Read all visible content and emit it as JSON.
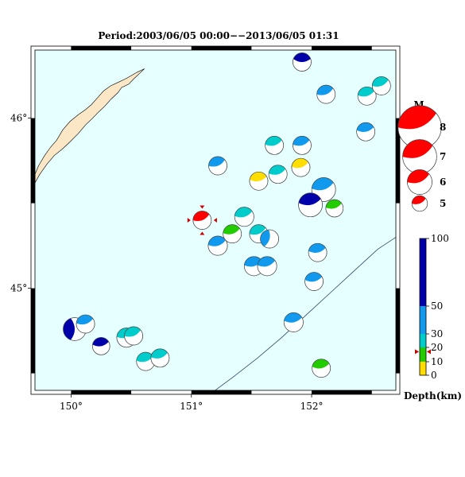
{
  "title": "Period:2003/06/05 00:00−−2013/06/05 01:31",
  "colors": {
    "sea": "#e6ffff",
    "land": "#fbe6c6",
    "frame_dark": "#000000",
    "frame_light": "#ffffff",
    "trench": "#334466"
  },
  "axes": {
    "x_ticks": [
      {
        "label": "150°",
        "lon": 150
      },
      {
        "label": "151°",
        "lon": 151
      },
      {
        "label": "152°",
        "lon": 152
      }
    ],
    "y_ticks": [
      {
        "label": "46°",
        "lat": 46
      },
      {
        "label": "45°",
        "lat": 45
      }
    ],
    "lon_range": [
      149.7,
      152.7
    ],
    "lat_range": [
      44.4,
      46.4
    ]
  },
  "magnitude_legend": {
    "title": "M",
    "items": [
      {
        "label": "8",
        "mag": 8
      },
      {
        "label": "7",
        "mag": 7
      },
      {
        "label": "6",
        "mag": 6
      },
      {
        "label": "5",
        "mag": 5
      }
    ]
  },
  "depth_legend": {
    "title": "Depth(km)",
    "ticks": [
      "100",
      "50",
      "30",
      "20",
      "10",
      "0"
    ],
    "bands": [
      {
        "from": 0,
        "to": 10,
        "color": "#ffdd00"
      },
      {
        "from": 10,
        "to": 20,
        "color": "#22cc00"
      },
      {
        "from": 20,
        "to": 30,
        "color": "#00cccc"
      },
      {
        "from": 30,
        "to": 50,
        "color": "#1199ee"
      },
      {
        "from": 50,
        "to": 100,
        "color": "#0000aa"
      }
    ],
    "marker_depth": 17
  },
  "events": [
    {
      "lon": 151.92,
      "lat": 46.33,
      "mag": 5.3,
      "color": "#0000aa",
      "angle": 20
    },
    {
      "lon": 152.12,
      "lat": 46.14,
      "mag": 5.3,
      "color": "#1199ee",
      "angle": 40
    },
    {
      "lon": 152.46,
      "lat": 46.13,
      "mag": 5.3,
      "color": "#00cccc",
      "angle": 35
    },
    {
      "lon": 152.58,
      "lat": 46.19,
      "mag": 5.3,
      "color": "#00cccc",
      "angle": 40
    },
    {
      "lon": 152.45,
      "lat": 45.92,
      "mag": 5.3,
      "color": "#1199ee",
      "angle": 30
    },
    {
      "lon": 151.69,
      "lat": 45.84,
      "mag": 5.3,
      "color": "#00cccc",
      "angle": 35
    },
    {
      "lon": 151.92,
      "lat": 45.84,
      "mag": 5.3,
      "color": "#1199ee",
      "angle": 35
    },
    {
      "lon": 151.22,
      "lat": 45.72,
      "mag": 5.3,
      "color": "#1199ee",
      "angle": 40
    },
    {
      "lon": 151.91,
      "lat": 45.71,
      "mag": 5.3,
      "color": "#ffdd00",
      "angle": 35
    },
    {
      "lon": 151.72,
      "lat": 45.67,
      "mag": 5.3,
      "color": "#00cccc",
      "angle": 35
    },
    {
      "lon": 151.56,
      "lat": 45.63,
      "mag": 5.3,
      "color": "#ffdd00",
      "angle": 30
    },
    {
      "lon": 152.1,
      "lat": 45.58,
      "mag": 5.9,
      "color": "#1199ee",
      "angle": 35
    },
    {
      "lon": 151.99,
      "lat": 45.49,
      "mag": 5.9,
      "color": "#0000aa",
      "angle": 30
    },
    {
      "lon": 152.19,
      "lat": 45.47,
      "mag": 5.2,
      "color": "#22cc00",
      "angle": 35
    },
    {
      "lon": 151.44,
      "lat": 45.42,
      "mag": 5.4,
      "color": "#00cccc",
      "angle": 35
    },
    {
      "lon": 151.34,
      "lat": 45.32,
      "mag": 5.3,
      "color": "#22cc00",
      "angle": 35
    },
    {
      "lon": 151.56,
      "lat": 45.32,
      "mag": 5.3,
      "color": "#00cccc",
      "angle": 40
    },
    {
      "lon": 151.65,
      "lat": 45.29,
      "mag": 5.3,
      "color": "#1199ee",
      "angle": 95
    },
    {
      "lon": 151.22,
      "lat": 45.25,
      "mag": 5.4,
      "color": "#1199ee",
      "angle": 35
    },
    {
      "lon": 152.05,
      "lat": 45.21,
      "mag": 5.3,
      "color": "#1199ee",
      "angle": 30
    },
    {
      "lon": 151.52,
      "lat": 45.13,
      "mag": 5.4,
      "color": "#1199ee",
      "angle": 35
    },
    {
      "lon": 151.63,
      "lat": 45.13,
      "mag": 5.4,
      "color": "#1199ee",
      "angle": 35
    },
    {
      "lon": 152.02,
      "lat": 45.04,
      "mag": 5.3,
      "color": "#1199ee",
      "angle": 30
    },
    {
      "lon": 151.85,
      "lat": 44.8,
      "mag": 5.4,
      "color": "#1199ee",
      "angle": 30
    },
    {
      "lon": 150.03,
      "lat": 44.76,
      "mag": 5.8,
      "color": "#0000aa",
      "angle": 110
    },
    {
      "lon": 150.12,
      "lat": 44.79,
      "mag": 5.3,
      "color": "#1199ee",
      "angle": 35
    },
    {
      "lon": 150.46,
      "lat": 44.71,
      "mag": 5.4,
      "color": "#00cccc",
      "angle": 35
    },
    {
      "lon": 150.52,
      "lat": 44.72,
      "mag": 5.3,
      "color": "#00cccc",
      "angle": 40
    },
    {
      "lon": 150.25,
      "lat": 44.66,
      "mag": 5.2,
      "color": "#0000aa",
      "angle": 30
    },
    {
      "lon": 150.62,
      "lat": 44.57,
      "mag": 5.3,
      "color": "#00cccc",
      "angle": 35
    },
    {
      "lon": 150.74,
      "lat": 44.59,
      "mag": 5.3,
      "color": "#00cccc",
      "angle": 35
    },
    {
      "lon": 152.08,
      "lat": 44.53,
      "mag": 5.3,
      "color": "#22cc00",
      "angle": 30
    }
  ],
  "highlight_event": {
    "lon": 151.09,
    "lat": 45.4,
    "mag": 5.3,
    "color": "#ff0000",
    "angle": 40
  },
  "coastline": [
    [
      149.7,
      45.67
    ],
    [
      149.73,
      45.72
    ],
    [
      149.78,
      45.78
    ],
    [
      149.83,
      45.83
    ],
    [
      149.88,
      45.87
    ],
    [
      149.93,
      45.93
    ],
    [
      149.99,
      45.98
    ],
    [
      150.06,
      46.02
    ],
    [
      150.12,
      46.05
    ],
    [
      150.17,
      46.08
    ],
    [
      150.22,
      46.12
    ],
    [
      150.27,
      46.16
    ],
    [
      150.33,
      46.19
    ],
    [
      150.39,
      46.21
    ],
    [
      150.45,
      46.23
    ],
    [
      150.5,
      46.25
    ],
    [
      150.55,
      46.27
    ],
    [
      150.61,
      46.29
    ],
    [
      150.58,
      46.27
    ],
    [
      150.52,
      46.23
    ],
    [
      150.48,
      46.2
    ],
    [
      150.42,
      46.18
    ],
    [
      150.39,
      46.15
    ],
    [
      150.33,
      46.11
    ],
    [
      150.28,
      46.07
    ],
    [
      150.22,
      46.03
    ],
    [
      150.18,
      46.0
    ],
    [
      150.12,
      45.96
    ],
    [
      150.06,
      45.91
    ],
    [
      149.99,
      45.86
    ],
    [
      149.93,
      45.82
    ],
    [
      149.86,
      45.78
    ],
    [
      149.8,
      45.73
    ],
    [
      149.74,
      45.67
    ],
    [
      149.7,
      45.62
    ]
  ],
  "trench": [
    [
      151.16,
      44.38
    ],
    [
      151.35,
      44.48
    ],
    [
      151.55,
      44.59
    ],
    [
      151.75,
      44.71
    ],
    [
      151.95,
      44.84
    ],
    [
      152.15,
      44.97
    ],
    [
      152.35,
      45.1
    ],
    [
      152.55,
      45.23
    ],
    [
      152.7,
      45.3
    ]
  ]
}
